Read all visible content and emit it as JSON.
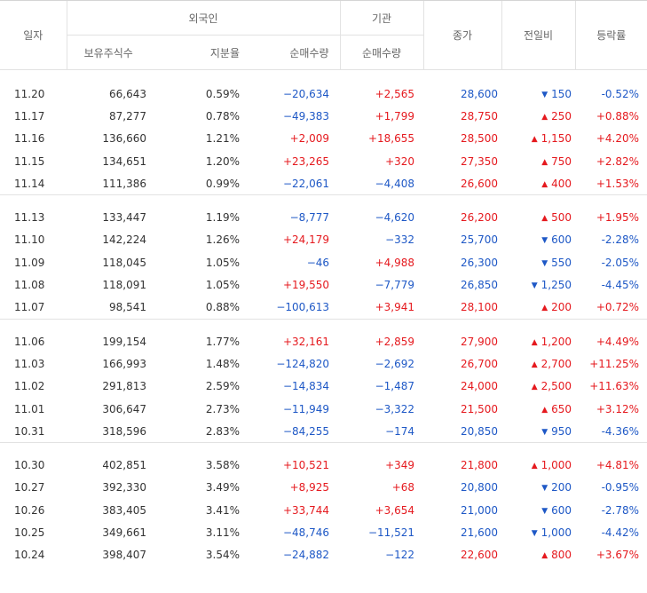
{
  "header": {
    "date": "일자",
    "foreign": "외국인",
    "institution": "기관",
    "holdings": "보유주식수",
    "share": "지분율",
    "net_foreign": "순매수량",
    "net_inst": "순매수량",
    "close": "종가",
    "change": "전일비",
    "rate": "등락률"
  },
  "colors": {
    "up": "#e5191e",
    "down": "#1e58c6"
  },
  "groups": [
    [
      {
        "date": "11.20",
        "holdings": "66,643",
        "share": "0.59%",
        "foreign": "−20,634",
        "inst": "+2,565",
        "close": "28,600",
        "dir": "down",
        "change": "150",
        "rate": "-0.52%"
      },
      {
        "date": "11.17",
        "holdings": "87,277",
        "share": "0.78%",
        "foreign": "−49,383",
        "inst": "+1,799",
        "close": "28,750",
        "dir": "up",
        "change": "250",
        "rate": "+0.88%"
      },
      {
        "date": "11.16",
        "holdings": "136,660",
        "share": "1.21%",
        "foreign": "+2,009",
        "inst": "+18,655",
        "close": "28,500",
        "dir": "up",
        "change": "1,150",
        "rate": "+4.20%"
      },
      {
        "date": "11.15",
        "holdings": "134,651",
        "share": "1.20%",
        "foreign": "+23,265",
        "inst": "+320",
        "close": "27,350",
        "dir": "up",
        "change": "750",
        "rate": "+2.82%"
      },
      {
        "date": "11.14",
        "holdings": "111,386",
        "share": "0.99%",
        "foreign": "−22,061",
        "inst": "−4,408",
        "close": "26,600",
        "dir": "up",
        "change": "400",
        "rate": "+1.53%"
      }
    ],
    [
      {
        "date": "11.13",
        "holdings": "133,447",
        "share": "1.19%",
        "foreign": "−8,777",
        "inst": "−4,620",
        "close": "26,200",
        "dir": "up",
        "change": "500",
        "rate": "+1.95%"
      },
      {
        "date": "11.10",
        "holdings": "142,224",
        "share": "1.26%",
        "foreign": "+24,179",
        "inst": "−332",
        "close": "25,700",
        "dir": "down",
        "change": "600",
        "rate": "-2.28%"
      },
      {
        "date": "11.09",
        "holdings": "118,045",
        "share": "1.05%",
        "foreign": "−46",
        "inst": "+4,988",
        "close": "26,300",
        "dir": "down",
        "change": "550",
        "rate": "-2.05%"
      },
      {
        "date": "11.08",
        "holdings": "118,091",
        "share": "1.05%",
        "foreign": "+19,550",
        "inst": "−7,779",
        "close": "26,850",
        "dir": "down",
        "change": "1,250",
        "rate": "-4.45%"
      },
      {
        "date": "11.07",
        "holdings": "98,541",
        "share": "0.88%",
        "foreign": "−100,613",
        "inst": "+3,941",
        "close": "28,100",
        "dir": "up",
        "change": "200",
        "rate": "+0.72%"
      }
    ],
    [
      {
        "date": "11.06",
        "holdings": "199,154",
        "share": "1.77%",
        "foreign": "+32,161",
        "inst": "+2,859",
        "close": "27,900",
        "dir": "up",
        "change": "1,200",
        "rate": "+4.49%"
      },
      {
        "date": "11.03",
        "holdings": "166,993",
        "share": "1.48%",
        "foreign": "−124,820",
        "inst": "−2,692",
        "close": "26,700",
        "dir": "up",
        "change": "2,700",
        "rate": "+11.25%"
      },
      {
        "date": "11.02",
        "holdings": "291,813",
        "share": "2.59%",
        "foreign": "−14,834",
        "inst": "−1,487",
        "close": "24,000",
        "dir": "up",
        "change": "2,500",
        "rate": "+11.63%"
      },
      {
        "date": "11.01",
        "holdings": "306,647",
        "share": "2.73%",
        "foreign": "−11,949",
        "inst": "−3,322",
        "close": "21,500",
        "dir": "up",
        "change": "650",
        "rate": "+3.12%"
      },
      {
        "date": "10.31",
        "holdings": "318,596",
        "share": "2.83%",
        "foreign": "−84,255",
        "inst": "−174",
        "close": "20,850",
        "dir": "down",
        "change": "950",
        "rate": "-4.36%"
      }
    ],
    [
      {
        "date": "10.30",
        "holdings": "402,851",
        "share": "3.58%",
        "foreign": "+10,521",
        "inst": "+349",
        "close": "21,800",
        "dir": "up",
        "change": "1,000",
        "rate": "+4.81%"
      },
      {
        "date": "10.27",
        "holdings": "392,330",
        "share": "3.49%",
        "foreign": "+8,925",
        "inst": "+68",
        "close": "20,800",
        "dir": "down",
        "change": "200",
        "rate": "-0.95%"
      },
      {
        "date": "10.26",
        "holdings": "383,405",
        "share": "3.41%",
        "foreign": "+33,744",
        "inst": "+3,654",
        "close": "21,000",
        "dir": "down",
        "change": "600",
        "rate": "-2.78%"
      },
      {
        "date": "10.25",
        "holdings": "349,661",
        "share": "3.11%",
        "foreign": "−48,746",
        "inst": "−11,521",
        "close": "21,600",
        "dir": "down",
        "change": "1,000",
        "rate": "-4.42%"
      },
      {
        "date": "10.24",
        "holdings": "398,407",
        "share": "3.54%",
        "foreign": "−24,882",
        "inst": "−122",
        "close": "22,600",
        "dir": "up",
        "change": "800",
        "rate": "+3.67%"
      }
    ]
  ]
}
